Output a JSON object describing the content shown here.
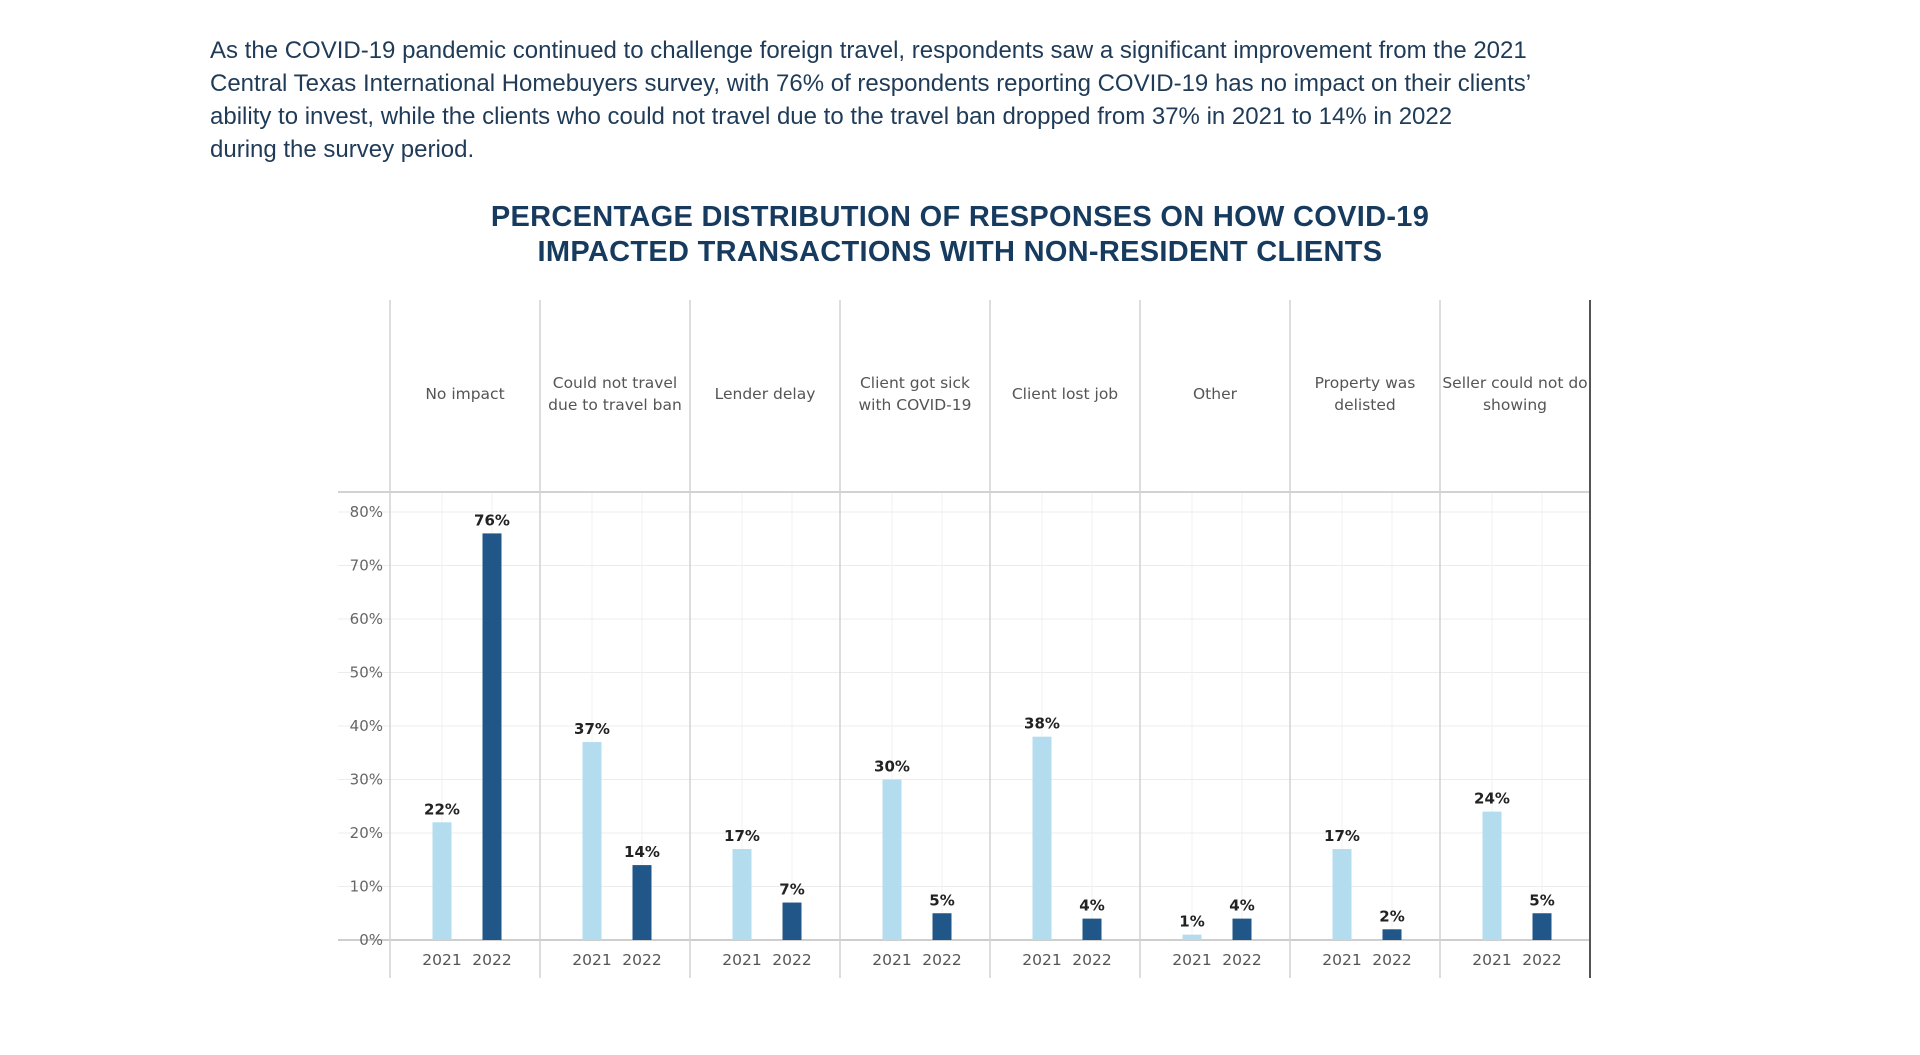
{
  "intro": {
    "line1": "As the COVID-19 pandemic continued to challenge foreign travel, respondents saw a significant improvement from the 2021",
    "line2": "Central Texas International Homebuyers survey, with 76% of respondents reporting COVID-19 has no impact on their clients’",
    "line3": "ability to invest, while the clients who could not travel due to the travel ban dropped from 37% in 2021 to 14% in 2022",
    "line4": "during the survey period."
  },
  "colors": {
    "bar_2021": "#b3ddef",
    "bar_2022": "#205688",
    "text_main": "#1f3b57",
    "title": "#173b5e",
    "grid": "#ececec",
    "divider": "#d2d2d2",
    "axis_label": "#666666"
  },
  "chart_data": {
    "type": "bar",
    "title_lines": [
      "PERCENTAGE DISTRIBUTION OF RESPONSES ON HOW COVID-19",
      "IMPACTED TRANSACTIONS WITH NON-RESIDENT CLIENTS"
    ],
    "categories": [
      {
        "label_lines": [
          "No impact"
        ]
      },
      {
        "label_lines": [
          "Could not travel",
          "due to travel ban"
        ]
      },
      {
        "label_lines": [
          "Lender delay"
        ]
      },
      {
        "label_lines": [
          "Client  got sick",
          "with COVID-19"
        ]
      },
      {
        "label_lines": [
          "Client lost job"
        ]
      },
      {
        "label_lines": [
          "Other"
        ]
      },
      {
        "label_lines": [
          "Property was",
          "delisted"
        ]
      },
      {
        "label_lines": [
          "Seller could not do",
          "showing"
        ]
      }
    ],
    "series": [
      {
        "name": "2021",
        "values": [
          22,
          37,
          17,
          30,
          38,
          1,
          17,
          24
        ],
        "labels": [
          "22%",
          "37%",
          "17%",
          "30%",
          "38%",
          "1%",
          "17%",
          "24%"
        ]
      },
      {
        "name": "2022",
        "values": [
          76,
          14,
          7,
          5,
          4,
          4,
          2,
          5
        ],
        "labels": [
          "76%",
          "14%",
          "7%",
          "5%",
          "4%",
          "4%",
          "2%",
          "5%"
        ]
      }
    ],
    "y_ticks": [
      0,
      10,
      20,
      30,
      40,
      50,
      60,
      70,
      80
    ],
    "y_tick_labels": [
      "0%",
      "10%",
      "20%",
      "30%",
      "40%",
      "50%",
      "60%",
      "70%",
      "80%"
    ],
    "ylim": [
      0,
      80
    ],
    "unit": "%",
    "grid": true
  }
}
